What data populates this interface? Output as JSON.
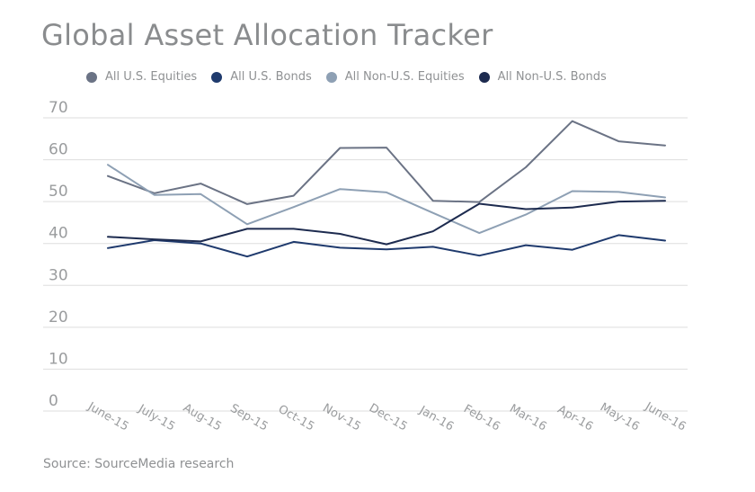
{
  "title": "Global Asset Allocation Tracker",
  "source": "Source: SourceMedia research",
  "chart_data": {
    "type": "line",
    "title": "Global Asset Allocation Tracker",
    "xlabel": "",
    "ylabel": "",
    "ylim": [
      0,
      70
    ],
    "yticks": [
      0,
      10,
      20,
      30,
      40,
      50,
      60,
      70
    ],
    "grid": true,
    "legend_position": "top",
    "categories": [
      "June-15",
      "July-15",
      "Aug-15",
      "Sep-15",
      "Oct-15",
      "Nov-15",
      "Dec-15",
      "Jan-16",
      "Feb-16",
      "Mar-16",
      "Apr-16",
      "May-16",
      "June-16"
    ],
    "series": [
      {
        "name": "All U.S. Equities",
        "color": "#6b7385",
        "values": [
          56.1,
          52.0,
          54.3,
          49.4,
          51.4,
          62.8,
          62.9,
          50.2,
          49.9,
          58.2,
          69.2,
          64.4,
          63.4
        ]
      },
      {
        "name": "All U.S. Bonds",
        "color": "#1f3a6d",
        "values": [
          38.9,
          40.8,
          40.0,
          36.9,
          40.4,
          39.0,
          38.6,
          39.2,
          37.1,
          39.6,
          38.5,
          42.0,
          40.7
        ]
      },
      {
        "name": "All Non-U.S. Equities",
        "color": "#8ea0b4",
        "values": [
          58.8,
          51.6,
          51.8,
          44.6,
          48.7,
          53.0,
          52.2,
          47.3,
          42.5,
          46.9,
          52.5,
          52.3,
          51.0
        ]
      },
      {
        "name": "All Non-U.S. Bonds",
        "color": "#1d2b4f",
        "values": [
          41.6,
          41.0,
          40.5,
          43.5,
          43.5,
          42.3,
          39.8,
          42.9,
          49.5,
          48.2,
          48.6,
          50.0,
          50.2
        ]
      }
    ]
  }
}
